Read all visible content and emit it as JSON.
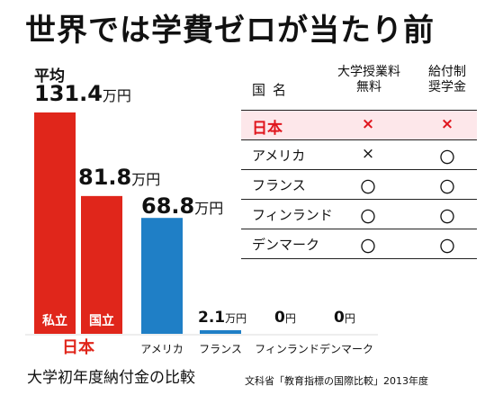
{
  "title": "世界では学費ゼロが当たり前",
  "average_label": "平均",
  "caption": "大学初年度納付金の比較",
  "source": "文科省「教育指標の国際比較」2013年度",
  "colors": {
    "japan": "#e0261b",
    "others": "#1f7fc6",
    "highlight_text": "#e0161e",
    "highlight_row": "#fde7ea"
  },
  "chart_data": {
    "type": "bar",
    "title": "大学初年度納付金の比較",
    "unit": "万円",
    "bars": [
      {
        "group": "日本",
        "inner_label": "私立",
        "value": 131.4,
        "value_label": "131.4",
        "unit_label": "万円",
        "color": "#e0261b"
      },
      {
        "group": "日本",
        "inner_label": "国立",
        "value": 81.8,
        "value_label": "81.8",
        "unit_label": "万円",
        "color": "#e0261b"
      },
      {
        "group": "アメリカ",
        "inner_label": "",
        "value": 68.8,
        "value_label": "68.8",
        "unit_label": "万円",
        "color": "#1f7fc6"
      },
      {
        "group": "フランス",
        "inner_label": "",
        "value": 2.1,
        "value_label": "2.1",
        "unit_label": "万円",
        "color": "#1f7fc6"
      },
      {
        "group": "フィンランド",
        "inner_label": "",
        "value": 0,
        "value_label": "0",
        "unit_label": "円",
        "color": "#1f7fc6"
      },
      {
        "group": "デンマーク",
        "inner_label": "",
        "value": 0,
        "value_label": "0",
        "unit_label": "円",
        "color": "#1f7fc6"
      }
    ],
    "groups": [
      "日本",
      "アメリカ",
      "フランス",
      "フィンランド",
      "デンマーク"
    ]
  },
  "table": {
    "header_country": "国名",
    "header_col1": [
      "大学授業料",
      "無料"
    ],
    "header_col2": [
      "給付制",
      "奨学金"
    ],
    "rows": [
      {
        "country": "日本",
        "tuition_free": "×",
        "grant": "×",
        "highlight": true
      },
      {
        "country": "アメリカ",
        "tuition_free": "×",
        "grant": "〇",
        "highlight": false
      },
      {
        "country": "フランス",
        "tuition_free": "〇",
        "grant": "〇",
        "highlight": false
      },
      {
        "country": "フィンランド",
        "tuition_free": "〇",
        "grant": "〇",
        "highlight": false
      },
      {
        "country": "デンマーク",
        "tuition_free": "〇",
        "grant": "〇",
        "highlight": false
      }
    ]
  }
}
